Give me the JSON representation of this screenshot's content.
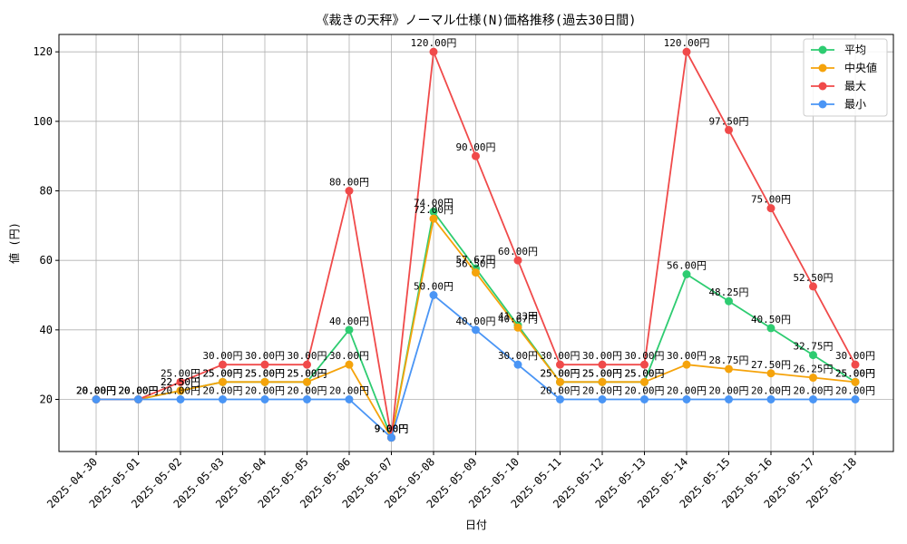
{
  "chart_data": {
    "type": "line",
    "title": "《裁きの天秤》ノーマル仕様(N)価格推移(過去30日間)",
    "xlabel": "日付",
    "ylabel": "値 (円)",
    "ylim": [
      5,
      125
    ],
    "yticks": [
      20,
      40,
      60,
      80,
      100,
      120
    ],
    "grid": true,
    "legend_position": "top-right",
    "label_suffix": "円",
    "categories": [
      "2025-04-30",
      "2025-05-01",
      "2025-05-02",
      "2025-05-03",
      "2025-05-04",
      "2025-05-05",
      "2025-05-06",
      "2025-05-07",
      "2025-05-08",
      "2025-05-09",
      "2025-05-10",
      "2025-05-11",
      "2025-05-12",
      "2025-05-13",
      "2025-05-14",
      "2025-05-15",
      "2025-05-16",
      "2025-05-17",
      "2025-05-18"
    ],
    "series": [
      {
        "name": "平均",
        "color": "#2ecc71",
        "values": [
          20,
          20,
          22.5,
          25,
          25,
          25,
          40,
          9,
          74,
          57.67,
          41.33,
          25,
          25,
          25,
          56,
          48.25,
          40.5,
          32.75,
          25
        ]
      },
      {
        "name": "中央値",
        "color": "#f5a30b",
        "values": [
          20,
          20,
          22.5,
          25,
          25,
          25,
          30,
          9,
          72,
          56.5,
          40.67,
          25,
          25,
          25,
          30,
          28.75,
          27.5,
          26.25,
          25
        ]
      },
      {
        "name": "最大",
        "color": "#f04a4a",
        "values": [
          20,
          20,
          25,
          30,
          30,
          30,
          80,
          9,
          120,
          90,
          60,
          30,
          30,
          30,
          120,
          97.5,
          75,
          52.5,
          30
        ]
      },
      {
        "name": "最小",
        "color": "#4a95f5",
        "values": [
          20,
          20,
          20,
          20,
          20,
          20,
          20,
          9,
          50,
          40,
          30,
          20,
          20,
          20,
          20,
          20,
          20,
          20,
          20
        ]
      }
    ]
  }
}
